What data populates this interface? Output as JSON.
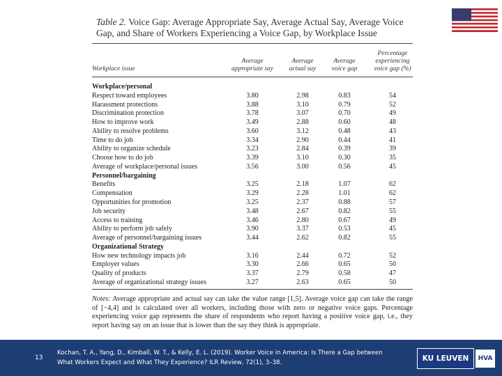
{
  "table": {
    "label": "Table 2.",
    "title_lines": [
      "Voice Gap: Average Appropriate Say, Average Actual Say, Average Voice",
      "Gap, and Share of Workers Experiencing a Voice Gap, by Workplace Issue"
    ],
    "row_header": "Workplace issue",
    "headers": [
      [
        "Average",
        "appropriate say"
      ],
      [
        "Average",
        "actual say"
      ],
      [
        "Average",
        "voice gap"
      ],
      [
        "Percentage",
        "experiencing",
        "voice gap (%)"
      ]
    ],
    "sections": [
      {
        "name": "Workplace/personal",
        "rows": [
          [
            "Respect toward employees",
            "3.80",
            "2.98",
            "0.83",
            "54"
          ],
          [
            "Harassment protections",
            "3.88",
            "3.10",
            "0.79",
            "52"
          ],
          [
            "Discrimination protection",
            "3.78",
            "3.07",
            "0.70",
            "49"
          ],
          [
            "How to improve work",
            "3.49",
            "2.88",
            "0.60",
            "48"
          ],
          [
            "Ability to resolve problems",
            "3.60",
            "3.12",
            "0.48",
            "43"
          ],
          [
            "Time to do job",
            "3.34",
            "2.90",
            "0.44",
            "41"
          ],
          [
            "Ability to organize schedule",
            "3.23",
            "2.84",
            "0.39",
            "39"
          ],
          [
            "Choose how to do job",
            "3.39",
            "3.10",
            "0.30",
            "35"
          ],
          [
            "Average of workplace/personal issues",
            "3.56",
            "3.00",
            "0.56",
            "45"
          ]
        ]
      },
      {
        "name": "Personnel/bargaining",
        "rows": [
          [
            "Benefits",
            "3.25",
            "2.18",
            "1.07",
            "62"
          ],
          [
            "Compensation",
            "3.29",
            "2.28",
            "1.01",
            "62"
          ],
          [
            "Opportunities for promotion",
            "3.25",
            "2.37",
            "0.88",
            "57"
          ],
          [
            "Job security",
            "3.48",
            "2.67",
            "0.82",
            "55"
          ],
          [
            "Access to training",
            "3.46",
            "2.80",
            "0.67",
            "49"
          ],
          [
            "Ability to perform job safely",
            "3.90",
            "3.37",
            "0.53",
            "45"
          ],
          [
            "Average of personnel/bargaining issues",
            "3.44",
            "2.62",
            "0.82",
            "55"
          ]
        ]
      },
      {
        "name": "Organizational Strategy",
        "rows": [
          [
            "How new technology impacts job",
            "3.16",
            "2.44",
            "0.72",
            "52"
          ],
          [
            "Employer values",
            "3.30",
            "2.66",
            "0.65",
            "50"
          ],
          [
            "Quality of products",
            "3.37",
            "2.79",
            "0.58",
            "47"
          ],
          [
            "Average of organizational strategy issues",
            "3.27",
            "2.63",
            "0.65",
            "50"
          ]
        ]
      }
    ],
    "notes_label": "Notes:",
    "notes": "Average appropriate and actual say can take the value range [1,5]. Average voice gap can take the range of [−4,4] and is calculated over all workers, including those with zero or negative voice gaps. Percentage experiencing voice gap represents the share of respondents who report having a positive voice gap, i.e., they report having say on an issue that is lower than the say they think is appropriate."
  },
  "footer": {
    "page": "13",
    "citation_lines": [
      "Kochan, T. A., Yang, D., Kimball, W. T., & Kelly, E. L. (2019). Worker Voice in America: Is There a Gap between",
      "What Workers Expect and What They Experience? ILR Review, 72(1), 3–38."
    ],
    "logo_left": "KU LEUVEN",
    "logo_right": "HVA"
  }
}
